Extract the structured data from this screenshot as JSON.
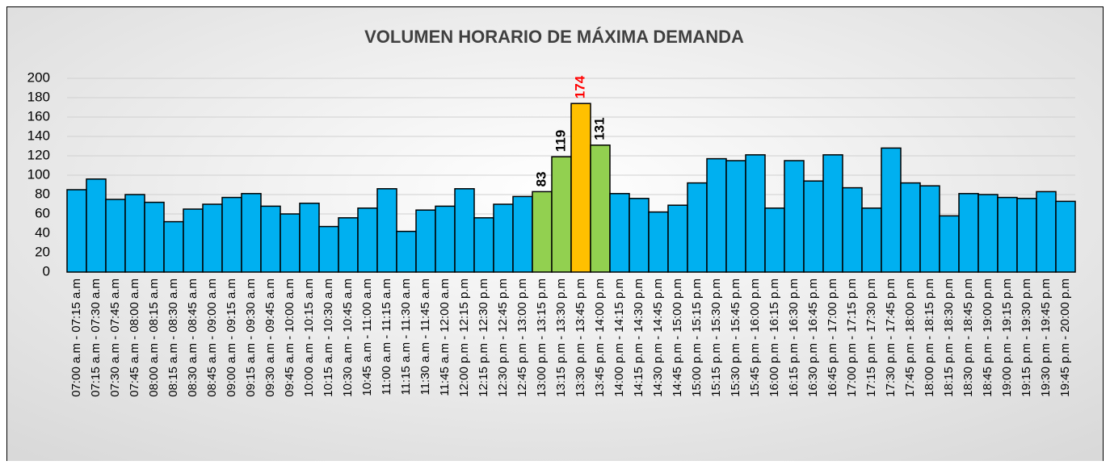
{
  "chart_data": {
    "type": "bar",
    "title": "VOLUMEN HORARIO DE MÁXIMA DEMANDA",
    "categories": [
      "07:00 a.m - 07:15 a.m",
      "07:15 a.m - 07:30 a.m",
      "07:30 a.m - 07:45 a.m",
      "07:45 a.m - 08:00 a.m",
      "08:00 a.m - 08:15 a.m",
      "08:15 a.m - 08:30 a.m",
      "08:30 a.m - 08:45 a.m",
      "08:45 a.m - 09:00 a.m",
      "09:00 a.m - 09:15 a.m",
      "09:15 a.m - 09:30 a.m",
      "09:30 a.m - 09:45 a.m",
      "09:45 a.m - 10:00 a.m",
      "10:00 a.m - 10:15 a.m",
      "10:15 a.m - 10:30 a.m",
      "10:30 a.m - 10:45 a.m",
      "10:45 a.m - 11:00 a.m",
      "11:00 a.m - 11:15 a.m",
      "11:15 a.m - 11:30 a.m",
      "11:30 a.m - 11:45 a.m",
      "11:45 a.m - 12:00 a.m",
      "12:00 p.m - 12:15 p.m",
      "12:15 p.m - 12:30 p.m",
      "12:30 p.m - 12:45 p.m",
      "12:45 p.m - 13:00 p.m",
      "13:00 p.m - 13:15 p.m",
      "13:15 p.m - 13:30 p.m",
      "13:30 p.m - 13:45 p.m",
      "13:45 p.m - 14:00 p.m",
      "14:00 p.m - 14:15 p.m",
      "14:15 p.m - 14:30 p.m",
      "14:30 p.m - 14:45 p.m",
      "14:45 p.m - 15:00 p.m",
      "15:00 p.m - 15:15 p.m",
      "15:15 p.m - 15:30 p.m",
      "15:30 p.m - 15:45 p.m",
      "15:45 p.m - 16:00 p.m",
      "16:00 p.m - 16:15 p.m",
      "16:15 p.m - 16:30 p.m",
      "16:30 p.m - 16:45 p.m",
      "16:45 p.m - 17:00 p.m",
      "17:00 p.m - 17:15 p.m",
      "17:15 p.m - 17:30 p.m",
      "17:30 p.m - 17:45 p.m",
      "17:45 p.m - 18:00 p.m",
      "18:00 p.m - 18:15 p.m",
      "18:15 p.m - 18:30 p.m",
      "18:30 p.m - 18:45 p.m",
      "18:45 p.m - 19:00 p.m",
      "19:00 p.m - 19:15 p.m",
      "19:15 p.m - 19:30 p.m",
      "19:30 p.m - 19:45 p.m",
      "19:45 p.m - 20:00 p.m"
    ],
    "values": [
      85,
      96,
      75,
      80,
      72,
      52,
      65,
      70,
      77,
      81,
      68,
      60,
      71,
      47,
      56,
      66,
      86,
      42,
      64,
      68,
      86,
      56,
      70,
      78,
      83,
      119,
      174,
      131,
      81,
      76,
      62,
      69,
      92,
      117,
      115,
      121,
      66,
      115,
      94,
      121,
      87,
      66,
      128,
      92,
      89,
      58,
      81,
      80,
      77,
      76,
      83,
      73
    ],
    "colors": [
      "#00b0f0",
      "#00b0f0",
      "#00b0f0",
      "#00b0f0",
      "#00b0f0",
      "#00b0f0",
      "#00b0f0",
      "#00b0f0",
      "#00b0f0",
      "#00b0f0",
      "#00b0f0",
      "#00b0f0",
      "#00b0f0",
      "#00b0f0",
      "#00b0f0",
      "#00b0f0",
      "#00b0f0",
      "#00b0f0",
      "#00b0f0",
      "#00b0f0",
      "#00b0f0",
      "#00b0f0",
      "#00b0f0",
      "#00b0f0",
      "#92d050",
      "#92d050",
      "#ffc000",
      "#92d050",
      "#00b0f0",
      "#00b0f0",
      "#00b0f0",
      "#00b0f0",
      "#00b0f0",
      "#00b0f0",
      "#00b0f0",
      "#00b0f0",
      "#00b0f0",
      "#00b0f0",
      "#00b0f0",
      "#00b0f0",
      "#00b0f0",
      "#00b0f0",
      "#00b0f0",
      "#00b0f0",
      "#00b0f0",
      "#00b0f0",
      "#00b0f0",
      "#00b0f0",
      "#00b0f0",
      "#00b0f0",
      "#00b0f0",
      "#00b0f0"
    ],
    "value_labels": [
      null,
      null,
      null,
      null,
      null,
      null,
      null,
      null,
      null,
      null,
      null,
      null,
      null,
      null,
      null,
      null,
      null,
      null,
      null,
      null,
      null,
      null,
      null,
      null,
      "83",
      "119",
      "174",
      "131",
      null,
      null,
      null,
      null,
      null,
      null,
      null,
      null,
      null,
      null,
      null,
      null,
      null,
      null,
      null,
      null,
      null,
      null,
      null,
      null,
      null,
      null,
      null,
      null
    ],
    "value_label_colors": [
      null,
      null,
      null,
      null,
      null,
      null,
      null,
      null,
      null,
      null,
      null,
      null,
      null,
      null,
      null,
      null,
      null,
      null,
      null,
      null,
      null,
      null,
      null,
      null,
      "#000000",
      "#000000",
      "#ff0000",
      "#000000",
      null,
      null,
      null,
      null,
      null,
      null,
      null,
      null,
      null,
      null,
      null,
      null,
      null,
      null,
      null,
      null,
      null,
      null,
      null,
      null,
      null,
      null,
      null,
      null
    ],
    "ylim": [
      0,
      200
    ],
    "yticks": [
      0,
      20,
      40,
      60,
      80,
      100,
      120,
      140,
      160,
      180,
      200
    ],
    "grid": true
  }
}
